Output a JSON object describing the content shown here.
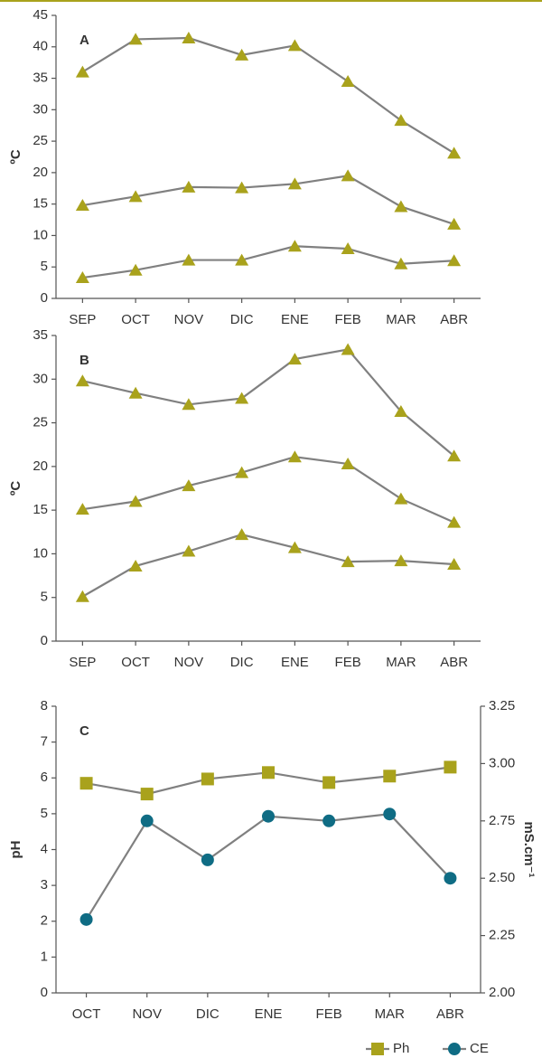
{
  "chart_data": [
    {
      "type": "line",
      "panel": "A",
      "ylabel": "ºC",
      "categories": [
        "SEP",
        "OCT",
        "NOV",
        "DIC",
        "ENE",
        "FEB",
        "MAR",
        "ABR"
      ],
      "ylim": [
        0,
        45
      ],
      "yticks": [
        0,
        5,
        10,
        15,
        20,
        25,
        30,
        35,
        40,
        45
      ],
      "series": [
        {
          "color": "#808080",
          "marker": "triangle",
          "marker_color": "#a9a21c",
          "values": [
            36,
            41.2,
            41.4,
            38.7,
            40.2,
            34.5,
            28.3,
            23.1
          ]
        },
        {
          "color": "#808080",
          "marker": "triangle",
          "marker_color": "#a9a21c",
          "values": [
            14.8,
            16.2,
            17.7,
            17.6,
            18.2,
            19.5,
            14.6,
            11.8
          ]
        },
        {
          "color": "#808080",
          "marker": "triangle",
          "marker_color": "#a9a21c",
          "values": [
            3.3,
            4.5,
            6.1,
            6.1,
            8.3,
            7.9,
            5.5,
            6.0
          ]
        }
      ]
    },
    {
      "type": "line",
      "panel": "B",
      "ylabel": "ºC",
      "categories": [
        "SEP",
        "OCT",
        "NOV",
        "DIC",
        "ENE",
        "FEB",
        "MAR",
        "ABR"
      ],
      "ylim": [
        0,
        35
      ],
      "yticks": [
        0,
        5,
        10,
        15,
        20,
        25,
        30,
        35
      ],
      "series": [
        {
          "color": "#808080",
          "marker": "triangle",
          "marker_color": "#a9a21c",
          "values": [
            29.8,
            28.4,
            27.1,
            27.8,
            32.3,
            33.4,
            26.3,
            21.2
          ]
        },
        {
          "color": "#808080",
          "marker": "triangle",
          "marker_color": "#a9a21c",
          "values": [
            15.1,
            16.0,
            17.8,
            19.3,
            21.1,
            20.3,
            16.3,
            13.6
          ]
        },
        {
          "color": "#808080",
          "marker": "triangle",
          "marker_color": "#a9a21c",
          "values": [
            5.1,
            8.6,
            10.3,
            12.2,
            10.7,
            9.1,
            9.2,
            8.8
          ]
        }
      ]
    },
    {
      "type": "line",
      "panel": "C",
      "ylabel": "pH",
      "y2label": "mS.cm⁻¹",
      "categories": [
        "OCT",
        "NOV",
        "DIC",
        "ENE",
        "FEB",
        "MAR",
        "ABR"
      ],
      "ylim": [
        0,
        8
      ],
      "yticks": [
        0,
        1,
        2,
        3,
        4,
        5,
        6,
        7,
        8
      ],
      "y2lim": [
        2,
        3.25
      ],
      "y2ticks": [
        {
          "value": 2,
          "label": "2.00"
        },
        2.25,
        {
          "value": 2.5,
          "label": "2.50"
        },
        2.75,
        {
          "value": 3,
          "label": "3.00"
        },
        3.25
      ],
      "legend": "bottom-right",
      "series": [
        {
          "name": "Ph",
          "color": "#808080",
          "marker": "square",
          "marker_color": "#a9a21c",
          "values": [
            5.85,
            5.55,
            5.97,
            6.15,
            5.87,
            6.05,
            6.3
          ]
        },
        {
          "name": "CE",
          "color": "#808080",
          "marker": "circle",
          "marker_color": "#0f6c84",
          "axis": "y2",
          "values": [
            2.32,
            2.75,
            2.58,
            2.77,
            2.75,
            2.78,
            2.5
          ]
        }
      ]
    }
  ]
}
